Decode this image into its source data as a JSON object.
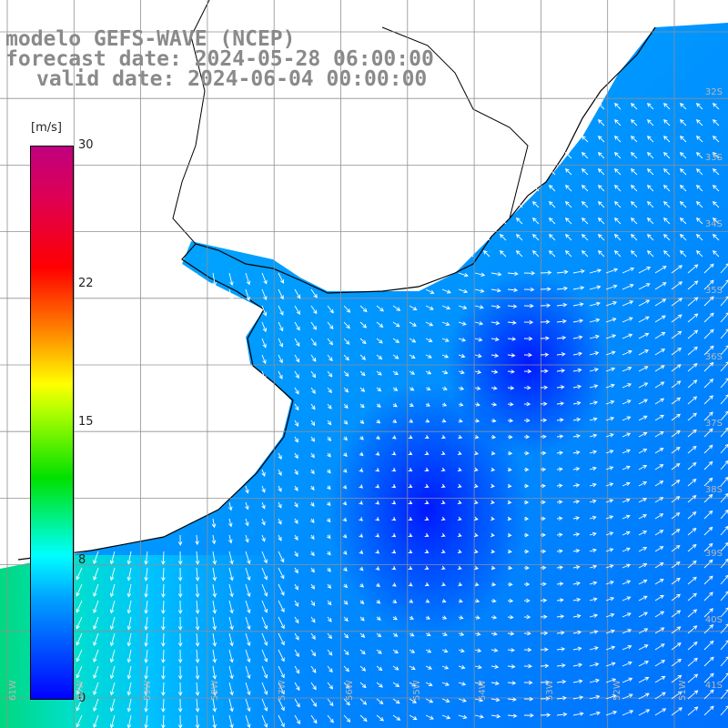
{
  "title": {
    "line1": "modelo GEFS-WAVE (NCEP)",
    "line2": "forecast date: 2024-05-28 06:00:00",
    "line3": "valid date: 2024-06-04 00:00:00"
  },
  "colorbar": {
    "unit": "[m/s]",
    "ticks": [
      "30",
      "22",
      "15",
      "8",
      "0"
    ],
    "tick_values": [
      30,
      22,
      15,
      8,
      0
    ]
  },
  "latitude_labels": [
    "32S",
    "33S",
    "34S",
    "35S",
    "36S",
    "37S",
    "38S",
    "39S",
    "40S",
    "41S"
  ],
  "longitude_labels": [
    "61W",
    "60W",
    "59W",
    "58W",
    "57W",
    "56W",
    "55W",
    "54W",
    "53W",
    "52W",
    "51W"
  ],
  "colors": {
    "land": "#ffffff",
    "grid": "#909090",
    "coast": "#000000",
    "arrow": "#ffffff",
    "label": "#8a8a8a"
  }
}
